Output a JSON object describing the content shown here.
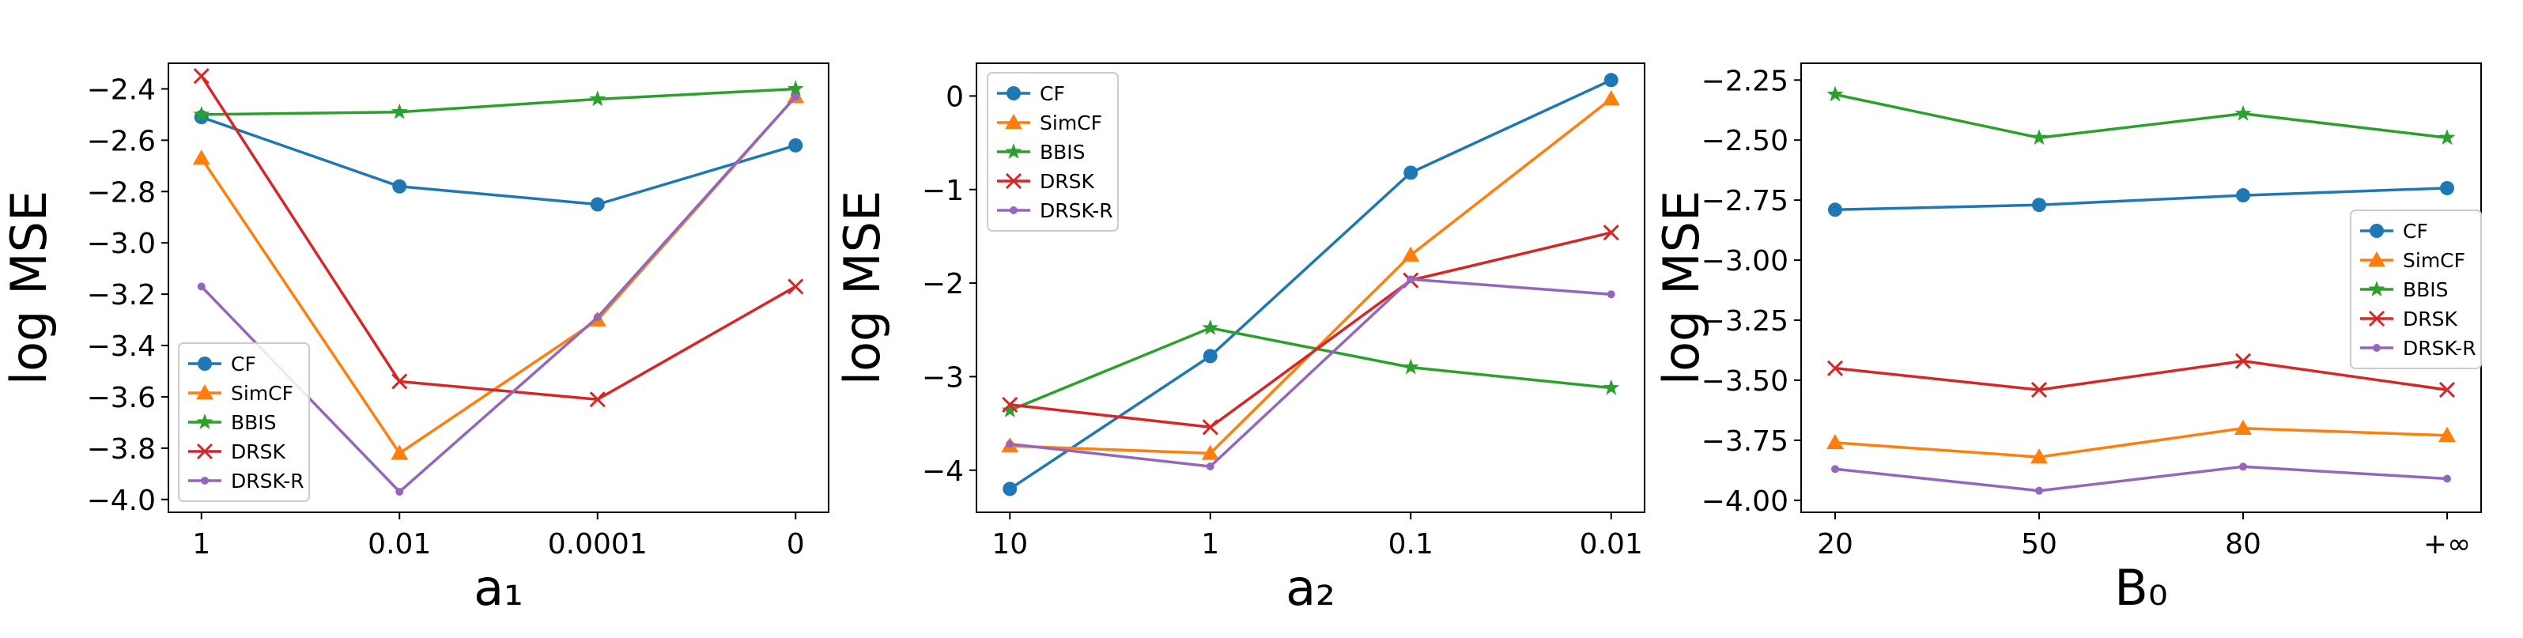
{
  "chart_data": [
    {
      "type": "line",
      "title": "",
      "xlabel": "a₁",
      "ylabel": "log MSE",
      "categories": [
        "1",
        "0.01",
        "0.0001",
        "0"
      ],
      "ylim": [
        -4.05,
        -2.3
      ],
      "yticks": [
        -4.0,
        -3.8,
        -3.6,
        -3.4,
        -3.2,
        -3.0,
        -2.8,
        -2.6,
        -2.4
      ],
      "ytick_labels": [
        "−4.0",
        "−3.8",
        "−3.6",
        "−3.4",
        "−3.2",
        "−3.0",
        "−2.8",
        "−2.6",
        "−2.4"
      ],
      "legend": "lower-left",
      "grid": false,
      "series": [
        {
          "name": "CF",
          "values": [
            -2.51,
            -2.78,
            -2.85,
            -2.62
          ]
        },
        {
          "name": "SimCF",
          "values": [
            -2.67,
            -3.82,
            -3.3,
            -2.43
          ]
        },
        {
          "name": "BBIS",
          "values": [
            -2.5,
            -2.49,
            -2.44,
            -2.4
          ]
        },
        {
          "name": "DRSK",
          "values": [
            -2.35,
            -3.54,
            -3.61,
            -3.17
          ]
        },
        {
          "name": "DRSK-R",
          "values": [
            -3.17,
            -3.97,
            -3.29,
            -2.43
          ]
        }
      ]
    },
    {
      "type": "line",
      "title": "",
      "xlabel": "a₂",
      "ylabel": "log MSE",
      "categories": [
        "10",
        "1",
        "0.1",
        "0.01"
      ],
      "ylim": [
        -4.45,
        0.35
      ],
      "yticks": [
        -4,
        -3,
        -2,
        -1,
        0
      ],
      "ytick_labels": [
        "−4",
        "−3",
        "−2",
        "−1",
        "0"
      ],
      "legend": "upper-left",
      "grid": false,
      "series": [
        {
          "name": "CF",
          "values": [
            -4.2,
            -2.78,
            -0.82,
            0.17
          ]
        },
        {
          "name": "SimCF",
          "values": [
            -3.74,
            -3.82,
            -1.7,
            -0.03
          ]
        },
        {
          "name": "BBIS",
          "values": [
            -3.36,
            -2.48,
            -2.9,
            -3.12
          ]
        },
        {
          "name": "DRSK",
          "values": [
            -3.3,
            -3.54,
            -1.97,
            -1.46
          ]
        },
        {
          "name": "DRSK-R",
          "values": [
            -3.72,
            -3.96,
            -1.96,
            -2.12
          ]
        }
      ]
    },
    {
      "type": "line",
      "title": "",
      "xlabel": "B₀",
      "ylabel": "log MSE",
      "categories": [
        "20",
        "50",
        "80",
        "+∞"
      ],
      "ylim": [
        -4.05,
        -2.18
      ],
      "yticks": [
        -4.0,
        -3.75,
        -3.5,
        -3.25,
        -3.0,
        -2.75,
        -2.5,
        -2.25
      ],
      "ytick_labels": [
        "−4.00",
        "−3.75",
        "−3.50",
        "−3.25",
        "−3.00",
        "−2.75",
        "−2.50",
        "−2.25"
      ],
      "legend": "center-right",
      "grid": false,
      "series": [
        {
          "name": "CF",
          "values": [
            -2.79,
            -2.77,
            -2.73,
            -2.7
          ]
        },
        {
          "name": "SimCF",
          "values": [
            -3.76,
            -3.82,
            -3.7,
            -3.73
          ]
        },
        {
          "name": "BBIS",
          "values": [
            -2.31,
            -2.49,
            -2.39,
            -2.49
          ]
        },
        {
          "name": "DRSK",
          "values": [
            -3.45,
            -3.54,
            -3.42,
            -3.54
          ]
        },
        {
          "name": "DRSK-R",
          "values": [
            -3.87,
            -3.96,
            -3.86,
            -3.91
          ]
        }
      ]
    }
  ],
  "style": {
    "series_colors": {
      "CF": "#1f77b4",
      "SimCF": "#ff7f0e",
      "BBIS": "#2ca02c",
      "DRSK": "#d62728",
      "DRSK-R": "#9467bd"
    },
    "series_markers": {
      "CF": "circle",
      "SimCF": "triangle",
      "BBIS": "star",
      "DRSK": "x",
      "DRSK-R": "small-circle"
    }
  }
}
